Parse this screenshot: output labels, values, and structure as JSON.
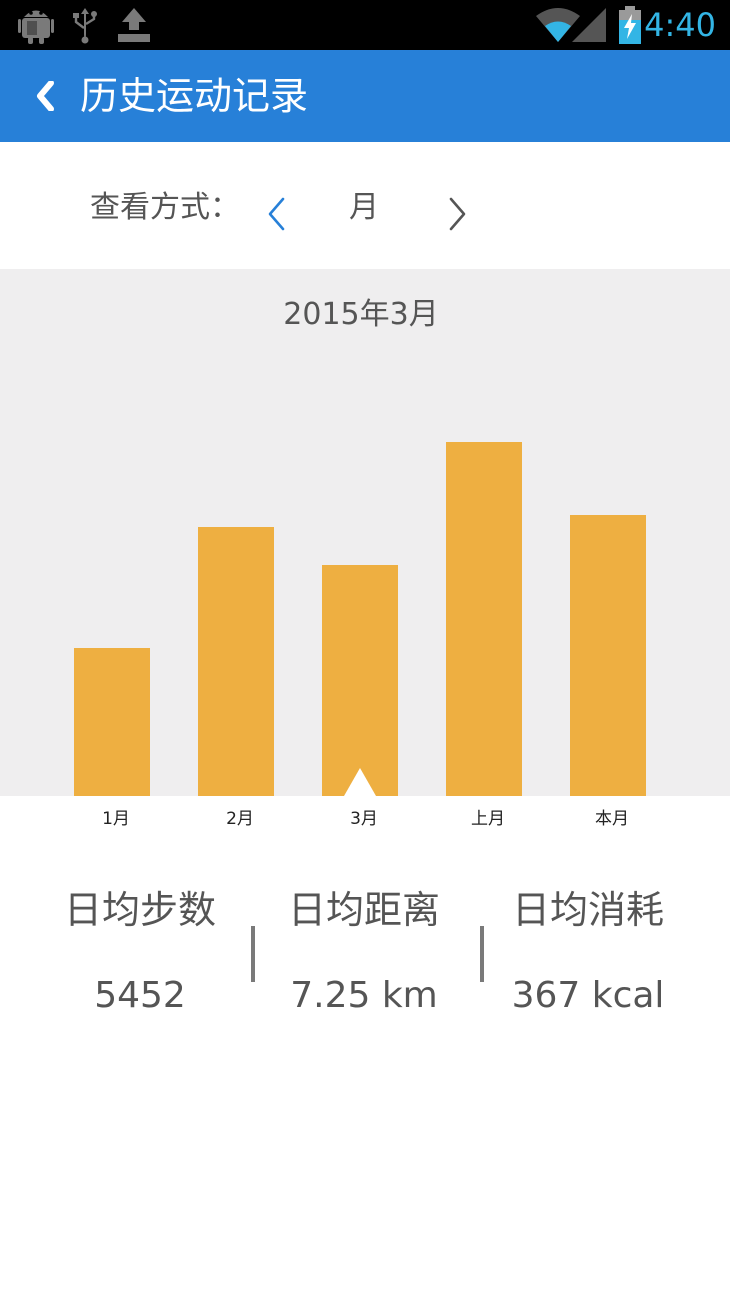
{
  "status_bar": {
    "time": "4:40",
    "time_color": "#33b5e5",
    "icons": [
      "android-debug-icon",
      "usb-icon",
      "upload-icon",
      "wifi-icon",
      "signal-icon",
      "battery-charging-icon"
    ]
  },
  "app_bar": {
    "back_icon": "chevron-left-icon",
    "title": "历史运动记录",
    "background": "#2780d8"
  },
  "view_selector": {
    "label": "查看方式：",
    "value": "月",
    "prev_icon": "chevron-left-icon",
    "next_icon": "chevron-right-icon"
  },
  "chart_data": {
    "type": "bar",
    "title": "2015年3月",
    "categories": [
      "1月",
      "2月",
      "3月",
      "上月",
      "本月"
    ],
    "values": [
      148,
      269,
      231,
      354,
      281
    ],
    "ylim": [
      0,
      527
    ],
    "bar_color": "#eeaf41",
    "background": "#efeeef",
    "selected_index": 2,
    "grid": false,
    "legend": "none"
  },
  "stats": [
    {
      "label": "日均步数",
      "value": "5452"
    },
    {
      "label": "日均距离",
      "value": "7.25 km"
    },
    {
      "label": "日均消耗",
      "value": "367 kcal"
    }
  ]
}
